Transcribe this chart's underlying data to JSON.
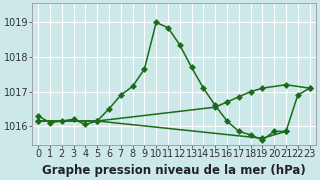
{
  "xlabel": "Graphe pression niveau de la mer (hPa)",
  "background_color": "#cce8e8",
  "line_color": "#1a6b1a",
  "grid_color": "#ffffff",
  "hours": [
    0,
    1,
    2,
    3,
    4,
    5,
    6,
    7,
    8,
    9,
    10,
    11,
    12,
    13,
    14,
    15,
    16,
    17,
    18,
    19,
    20,
    21,
    22,
    23
  ],
  "series1": [
    1016.3,
    1016.1,
    1016.15,
    1016.2,
    1016.05,
    1016.15,
    1016.5,
    1016.9,
    1017.15,
    1017.65,
    1019.0,
    1018.85,
    1018.35,
    1017.7,
    1017.1,
    1016.6,
    1016.15,
    1015.85,
    1015.75,
    1015.6,
    1015.85,
    1015.85,
    1016.9,
    1017.1
  ],
  "series2_x": [
    0,
    5,
    15,
    16,
    17,
    18,
    19,
    21,
    23
  ],
  "series2_y": [
    1016.15,
    1016.15,
    1016.55,
    1016.7,
    1016.85,
    1017.0,
    1017.1,
    1017.2,
    1017.1
  ],
  "series3_x": [
    0,
    5,
    19,
    21
  ],
  "series3_y": [
    1016.15,
    1016.15,
    1015.65,
    1015.85
  ],
  "ylim_min": 1015.45,
  "ylim_max": 1019.55,
  "yticks": [
    1016,
    1017,
    1018,
    1019
  ],
  "marker": "D",
  "markersize": 3.0,
  "linewidth": 1.1,
  "xlabel_fontsize": 8.5,
  "tick_fontsize": 7.0,
  "fig_width": 3.2,
  "fig_height": 1.8
}
